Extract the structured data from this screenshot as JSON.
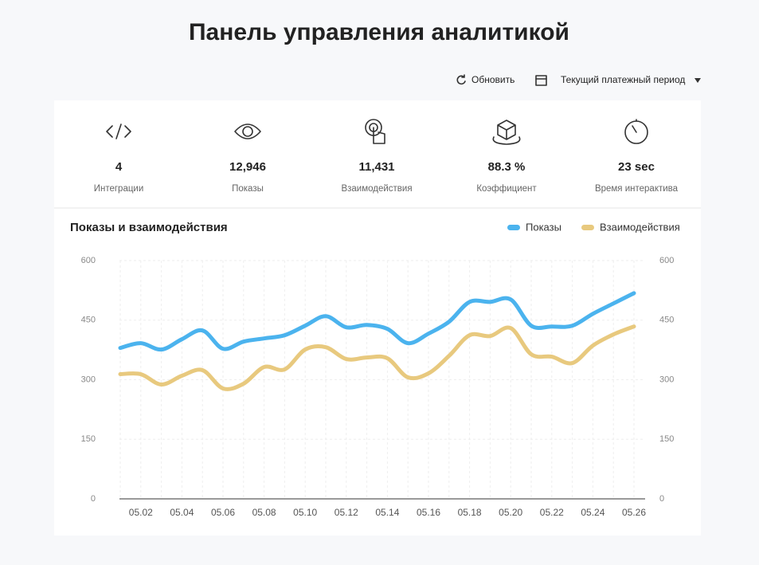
{
  "header": {
    "title": "Панель управления аналитикой"
  },
  "toolbar": {
    "refresh": "Обновить",
    "period": "Текущий платежный период"
  },
  "stats": [
    {
      "value": "4",
      "label": "Интеграции"
    },
    {
      "value": "12,946",
      "label": "Показы"
    },
    {
      "value": "11,431",
      "label": "Взаимодействия"
    },
    {
      "value": "88.3 %",
      "label": "Коэффициент"
    },
    {
      "value": "23 sec",
      "label": "Время интерактива"
    }
  ],
  "chart_data": {
    "type": "line",
    "title": "Показы и взаимодействия",
    "categories": [
      null,
      "05.02",
      null,
      "05.04",
      null,
      "05.06",
      null,
      "05.08",
      null,
      "05.10",
      null,
      "05.12",
      null,
      "05.14",
      null,
      "05.16",
      null,
      "05.18",
      null,
      "05.20",
      null,
      "05.22",
      null,
      "05.24",
      null,
      "05.26"
    ],
    "series": [
      {
        "name": "Показы",
        "color": "#4bb3ee",
        "values": [
          380,
          392,
          376,
          402,
          424,
          378,
          396,
          404,
          412,
          436,
          460,
          432,
          438,
          428,
          392,
          416,
          446,
          496,
          496,
          502,
          436,
          434,
          436,
          466,
          492,
          518
        ]
      },
      {
        "name": "Взаимодействия",
        "color": "#e8c97e",
        "values": [
          314,
          314,
          288,
          310,
          324,
          278,
          290,
          332,
          326,
          376,
          382,
          352,
          356,
          354,
          306,
          316,
          360,
          412,
          410,
          430,
          364,
          358,
          342,
          386,
          414,
          434
        ]
      }
    ],
    "ylim": [
      0,
      600
    ],
    "yticks": [
      0,
      150,
      300,
      450,
      600
    ],
    "y2lim": [
      0,
      600
    ],
    "y2ticks": [
      0,
      150,
      300,
      450,
      600
    ],
    "grid": true,
    "legend": "top-right"
  }
}
